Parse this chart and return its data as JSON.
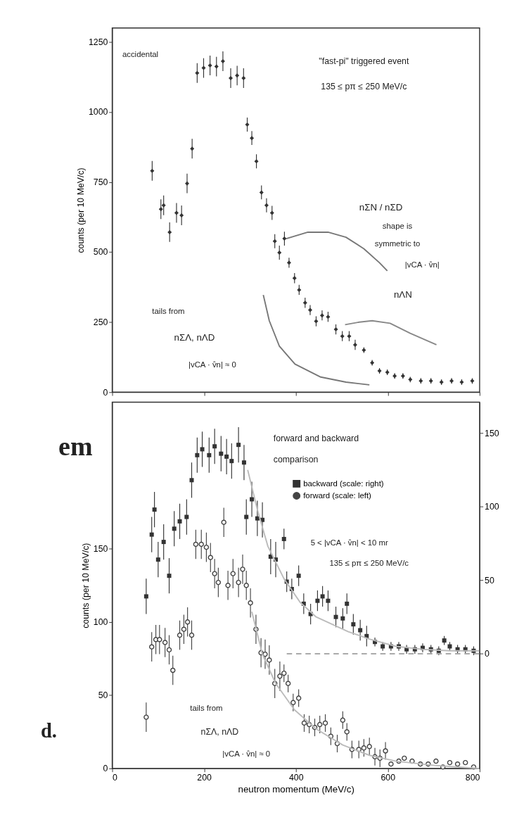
{
  "chart_data": [
    {
      "type": "scatter",
      "xlim": [
        0,
        800
      ],
      "xticks": [
        0,
        200,
        400,
        600,
        800
      ],
      "ylim": [
        0,
        1300
      ],
      "yticks": [
        0,
        250,
        500,
        750,
        1000,
        1250
      ],
      "ylabel": "counts (per 10 MeV/c)",
      "tick_labels": "y",
      "grid": false,
      "legend": false,
      "series": [
        {
          "marker": "diamond",
          "color": "#333333",
          "x": [
            87,
            106,
            112,
            125,
            140,
            151,
            163,
            174,
            185,
            199,
            213,
            227,
            241,
            258,
            272,
            286,
            294,
            304,
            314,
            325,
            336,
            348,
            354,
            364,
            375,
            385,
            397,
            407,
            420,
            431,
            444,
            457,
            470,
            487,
            501,
            516,
            529,
            548,
            566,
            582,
            599,
            615,
            633,
            649,
            672,
            694,
            717,
            739,
            761,
            784
          ],
          "values": [
            790,
            653,
            667,
            571,
            640,
            631,
            745,
            869,
            1139,
            1157,
            1166,
            1162,
            1181,
            1121,
            1130,
            1121,
            955,
            907,
            824,
            713,
            667,
            640,
            539,
            498,
            548,
            462,
            407,
            365,
            319,
            293,
            253,
            274,
            269,
            224,
            200,
            200,
            169,
            150,
            105,
            76,
            71,
            58,
            58,
            45,
            40,
            40,
            36,
            40,
            36,
            40
          ],
          "errors": [
            35,
            35,
            35,
            35,
            35,
            35,
            35,
            35,
            35,
            35,
            35,
            35,
            35,
            35,
            35,
            35,
            25,
            25,
            25,
            25,
            25,
            25,
            25,
            25,
            25,
            18,
            18,
            18,
            18,
            18,
            18,
            18,
            18,
            18,
            18,
            18,
            18,
            10,
            10,
            10,
            10,
            10,
            10,
            10,
            10,
            10,
            10,
            10,
            10,
            10
          ]
        },
        {
          "type": "line",
          "color": "#777777",
          "x": [
            379,
            426,
            470,
            509,
            548,
            582,
            599
          ],
          "values": [
            548,
            571,
            571,
            553,
            512,
            462,
            433
          ]
        },
        {
          "type": "line",
          "color": "#888888",
          "x": [
            507,
            538,
            566,
            605,
            649,
            706
          ],
          "values": [
            241,
            250,
            255,
            246,
            210,
            169
          ]
        },
        {
          "type": "line",
          "color": "#777777",
          "x": [
            329,
            342,
            364,
            398,
            454,
            509,
            560
          ],
          "values": [
            347,
            255,
            164,
            100,
            54,
            36,
            26
          ]
        }
      ],
      "annotations": [
        "accidental",
        "\"fast-pi\" triggered event",
        "135 ≤ pπ ≤ 250 MeV/c",
        "nΣN / nΣD",
        "shape is",
        "symmetric to",
        "|vCA · v̂n|",
        "nΛN",
        "tails from",
        "nΣΛ, nΛD",
        "|vCA · v̂n| ≈ 0"
      ]
    },
    {
      "type": "scatter",
      "xlim": [
        0,
        800
      ],
      "xticks": [
        0,
        200,
        400,
        600,
        800
      ],
      "ylim": [
        0,
        250
      ],
      "yticks": [
        0,
        50,
        100,
        150
      ],
      "y2lim": [
        -78,
        171
      ],
      "y2ticks": [
        0,
        50,
        100,
        150
      ],
      "xlabel": "neutron momentum (MeV/c)",
      "ylabel": "counts (per 10 MeV/c)",
      "grid": false,
      "legend": "top right",
      "series": [
        {
          "name": "backward (scale: right)",
          "axis": "y2",
          "marker": "square",
          "color": "#333333",
          "x": [
            74,
            86,
            92,
            100,
            112,
            124,
            135,
            147,
            162,
            173,
            185,
            196,
            211,
            223,
            237,
            249,
            260,
            275,
            287,
            292,
            304,
            316,
            327,
            345,
            356,
            374,
            380,
            391,
            406,
            417,
            432,
            447,
            458,
            470,
            487,
            502,
            511,
            525,
            540,
            554,
            572,
            589,
            607,
            624,
            641,
            659,
            676,
            694,
            711,
            723,
            735,
            752,
            769,
            787
          ],
          "values": [
            39,
            81,
            98,
            64,
            76,
            53,
            85,
            90,
            93,
            118,
            135,
            139,
            135,
            141,
            136,
            134,
            131,
            142,
            130,
            93,
            105,
            92,
            91,
            66,
            64,
            78,
            49,
            44,
            53,
            34,
            27,
            36,
            39,
            36,
            25,
            24,
            34,
            20,
            16,
            12,
            8,
            5,
            5,
            5,
            3,
            3,
            4,
            3,
            2,
            9,
            5,
            3,
            3,
            2
          ],
          "errors": [
            12,
            12,
            12,
            12,
            12,
            12,
            12,
            12,
            12,
            12,
            12,
            12,
            12,
            12,
            12,
            12,
            12,
            12,
            12,
            12,
            12,
            12,
            12,
            12,
            12,
            7,
            7,
            7,
            7,
            7,
            7,
            7,
            7,
            7,
            7,
            7,
            7,
            7,
            7,
            7,
            3,
            3,
            3,
            3,
            3,
            3,
            3,
            3,
            3,
            3,
            3,
            3,
            3,
            3
          ]
        },
        {
          "name": "forward (scale: left)",
          "marker": "circle",
          "color": "#444444",
          "x": [
            74,
            86,
            95,
            103,
            115,
            124,
            132,
            147,
            156,
            164,
            173,
            182,
            194,
            205,
            214,
            223,
            231,
            243,
            252,
            263,
            275,
            284,
            292,
            301,
            313,
            324,
            333,
            342,
            354,
            365,
            374,
            383,
            394,
            406,
            418,
            429,
            441,
            452,
            464,
            476,
            490,
            502,
            511,
            522,
            537,
            548,
            560,
            572,
            583,
            595,
            607,
            624,
            636,
            653,
            671,
            688,
            705,
            720,
            735,
            752,
            769,
            787
          ],
          "values": [
            35,
            83,
            88,
            88,
            86,
            81,
            67,
            91,
            95,
            100,
            91,
            153,
            153,
            151,
            144,
            133,
            127,
            168,
            125,
            133,
            127,
            136,
            125,
            113,
            95,
            79,
            78,
            74,
            58,
            63,
            65,
            58,
            45,
            48,
            31,
            30,
            28,
            30,
            31,
            22,
            17,
            33,
            25,
            13,
            13,
            14,
            15,
            8,
            7,
            12,
            3,
            5,
            7,
            5,
            3,
            3,
            5,
            1,
            4,
            3,
            4,
            1
          ],
          "errors": [
            10,
            10,
            10,
            10,
            10,
            10,
            10,
            10,
            10,
            10,
            10,
            10,
            10,
            10,
            10,
            10,
            10,
            10,
            10,
            10,
            10,
            10,
            10,
            10,
            10,
            10,
            10,
            10,
            10,
            10,
            6,
            6,
            6,
            6,
            6,
            6,
            6,
            6,
            6,
            6,
            6,
            6,
            6,
            6,
            6,
            6,
            6,
            6,
            6,
            6,
            1,
            1,
            1,
            1,
            1,
            1,
            1,
            1,
            1,
            1,
            1,
            1
          ]
        },
        {
          "type": "line",
          "axis": "y2",
          "color": "#bbbbbb",
          "x": [
            295,
            316,
            339,
            374,
            409,
            444,
            479,
            514,
            560,
            618,
            676,
            735,
            799
          ],
          "values": [
            125,
            98,
            73,
            51,
            35,
            25,
            20,
            15,
            10,
            5,
            3,
            2,
            2
          ]
        },
        {
          "type": "line",
          "color": "#bbbbbb",
          "x": [
            304,
            327,
            356,
            397,
            444,
            502,
            560,
            618,
            705,
            799
          ],
          "values": [
            107,
            78,
            58,
            40,
            27,
            16,
            9,
            5,
            2,
            0
          ]
        },
        {
          "type": "line",
          "axis": "y2",
          "line_style": "dashed",
          "color": "#aaaaaa",
          "x": [
            380,
            800
          ],
          "values": [
            0,
            0
          ]
        }
      ],
      "annotations": [
        "forward and backward",
        "comparison",
        "5 < |vCA · v̂n| < 10 mr",
        "135 ≤ pπ ≤ 250 MeV/c",
        "tails from",
        "nΣΛ, nΛD",
        "|vCA · v̂n| ≈ 0",
        "em",
        "d."
      ]
    }
  ]
}
